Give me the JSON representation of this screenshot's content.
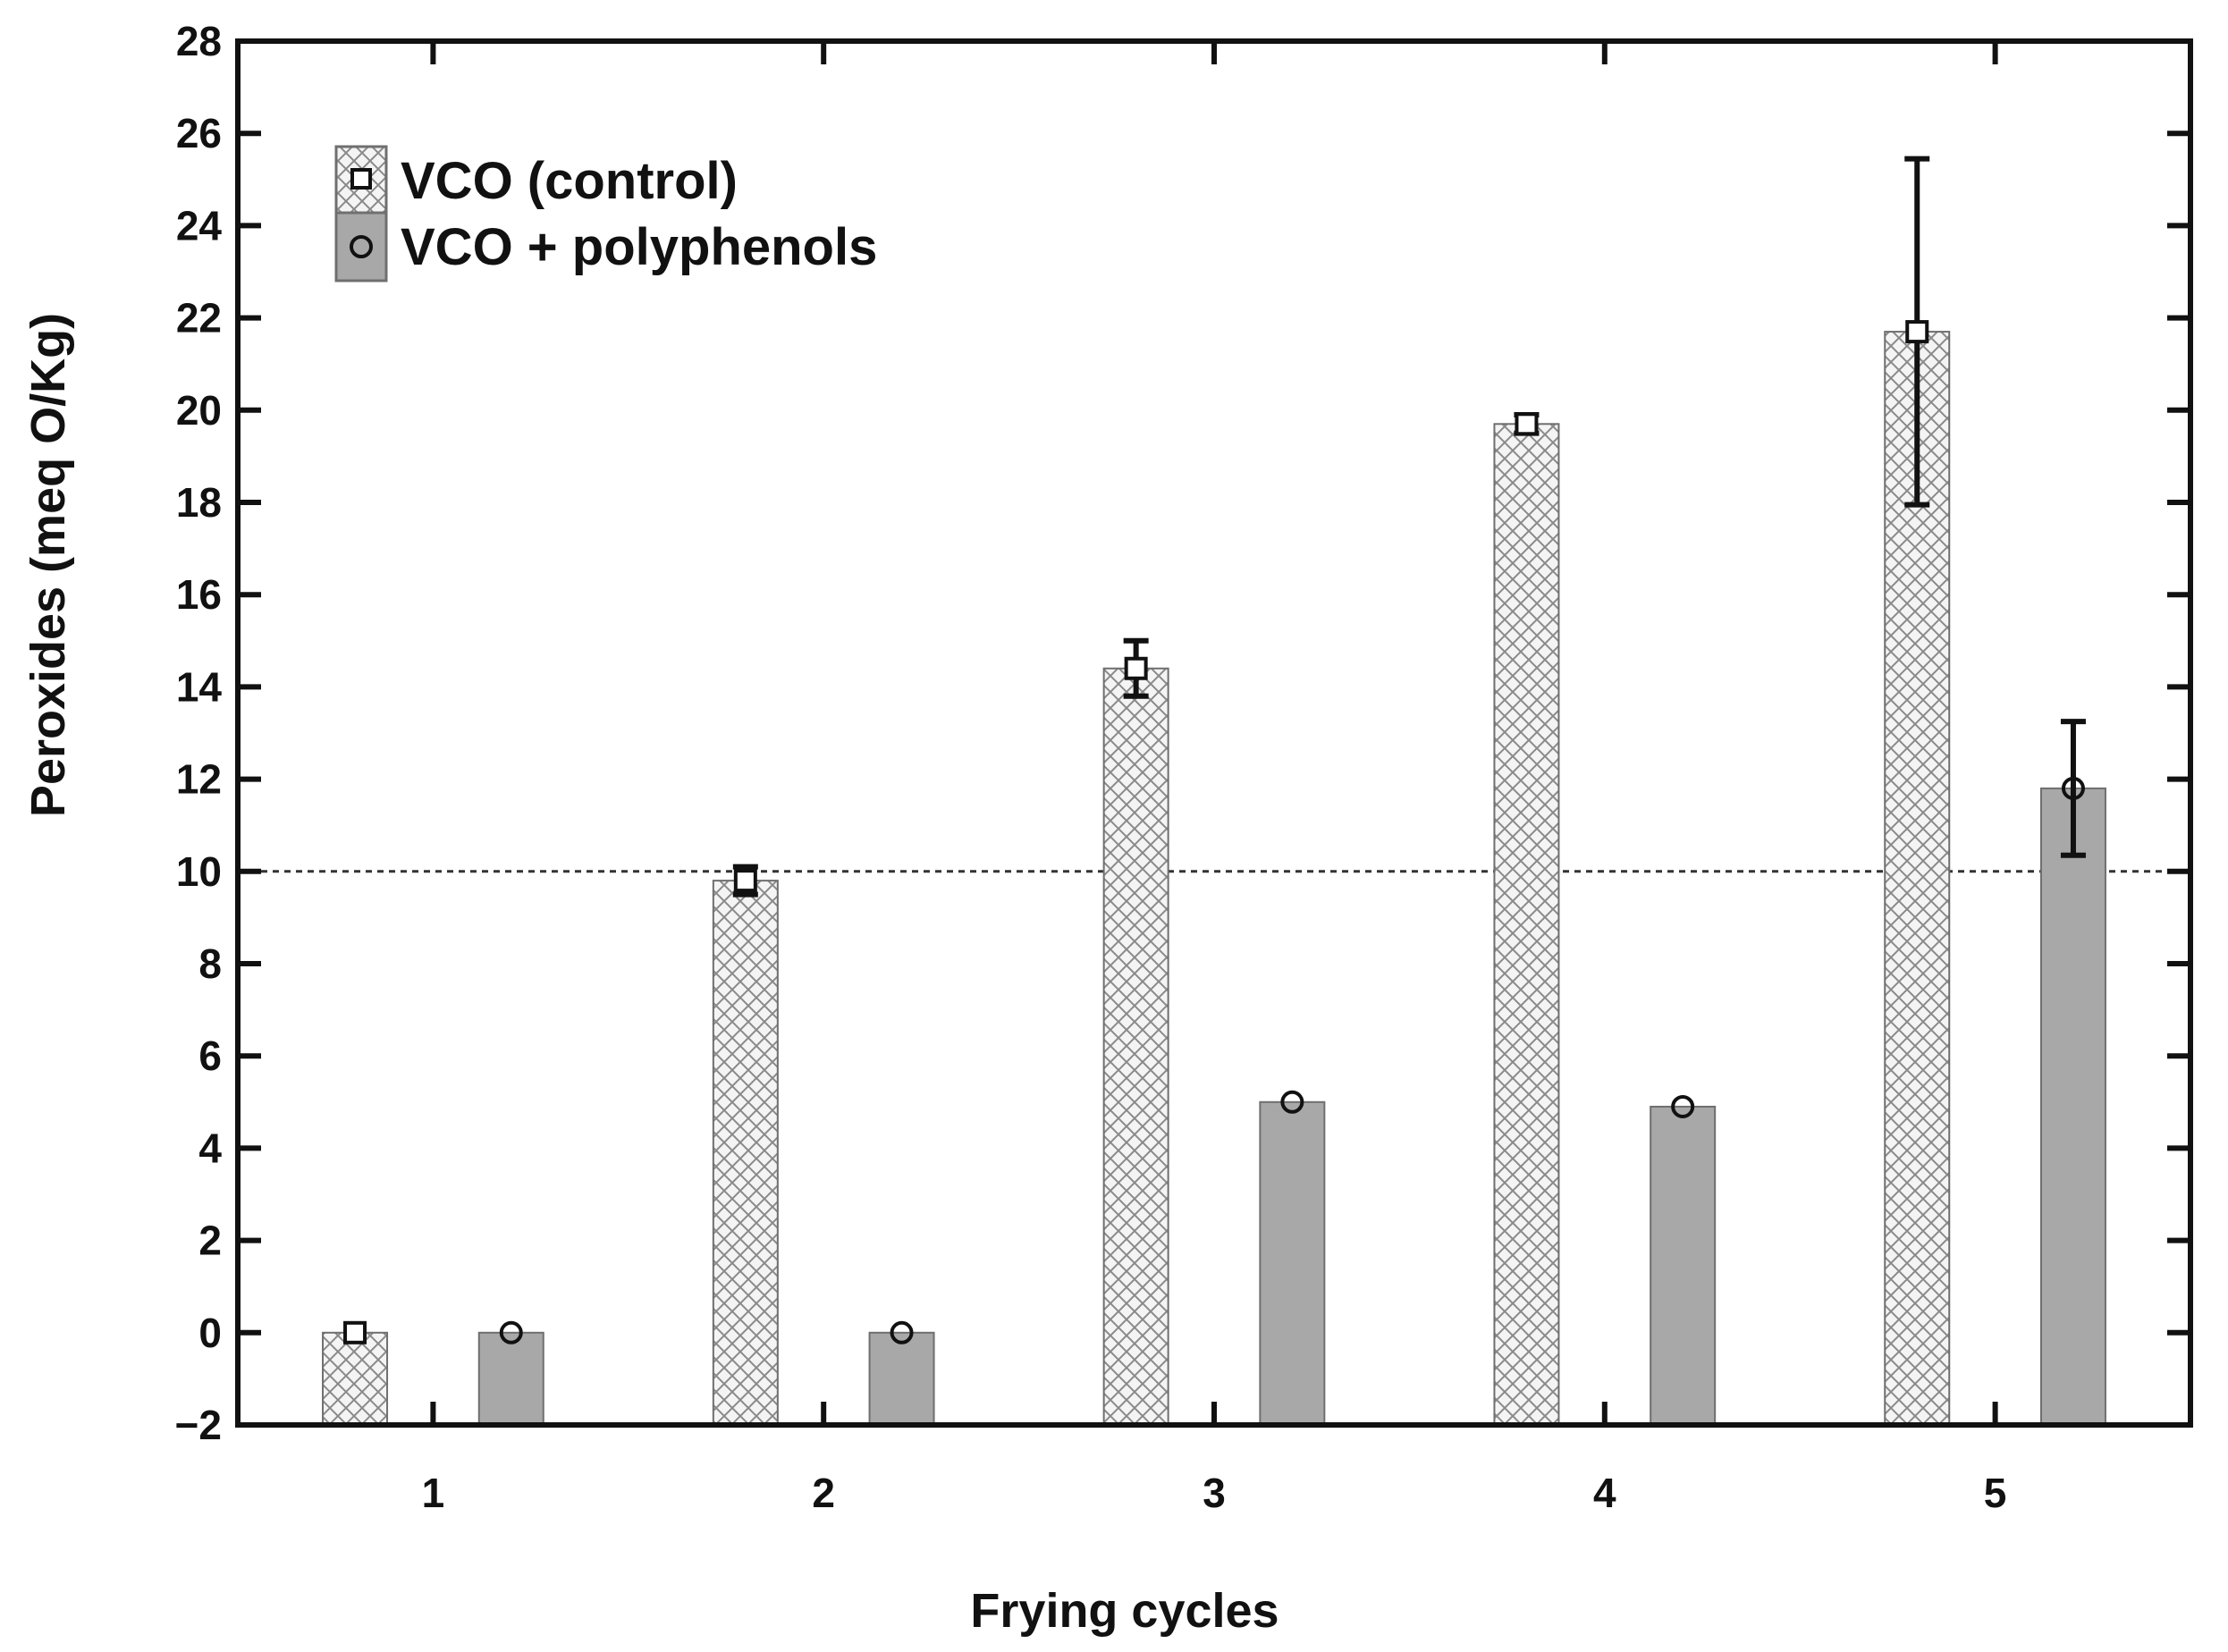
{
  "chart_data": {
    "type": "bar",
    "title": "",
    "xlabel": "Frying cycles",
    "ylabel": "Peroxides (meq O/Kg)",
    "categories": [
      "1",
      "2",
      "3",
      "4",
      "5"
    ],
    "xlim": [
      0.5,
      5.5
    ],
    "ylim": [
      -2,
      28
    ],
    "yticks": [
      -2,
      0,
      2,
      4,
      6,
      8,
      10,
      12,
      14,
      16,
      18,
      20,
      22,
      24,
      26,
      28
    ],
    "ytick_labels": [
      "−2",
      "0",
      "2",
      "4",
      "6",
      "8",
      "10",
      "12",
      "14",
      "16",
      "18",
      "20",
      "22",
      "24",
      "26",
      "28"
    ],
    "reference_line": {
      "y": 10,
      "style": "dotted"
    },
    "legend_position": "top-left",
    "series": [
      {
        "name": "VCO (control)",
        "marker": "square",
        "fill": "crosshatch",
        "offset": -0.2,
        "values": [
          0,
          9.8,
          14.4,
          19.7,
          21.7
        ],
        "errors": [
          0.1,
          0.3,
          0.6,
          0.2,
          3.75
        ],
        "colors": {
          "fill": "#f4f4f4",
          "hatch": "#8a8a8a",
          "edge": "#6f6f6f"
        }
      },
      {
        "name": "VCO + polyphenols",
        "marker": "circle",
        "fill": "solid",
        "offset": 0.2,
        "values": [
          0,
          0,
          5.0,
          4.9,
          11.8
        ],
        "errors": [
          0.1,
          0.1,
          0.1,
          0.1,
          1.45
        ],
        "colors": {
          "fill": "#a8a8a8",
          "hatch": "#a8a8a8",
          "edge": "#6f6f6f"
        }
      }
    ]
  }
}
